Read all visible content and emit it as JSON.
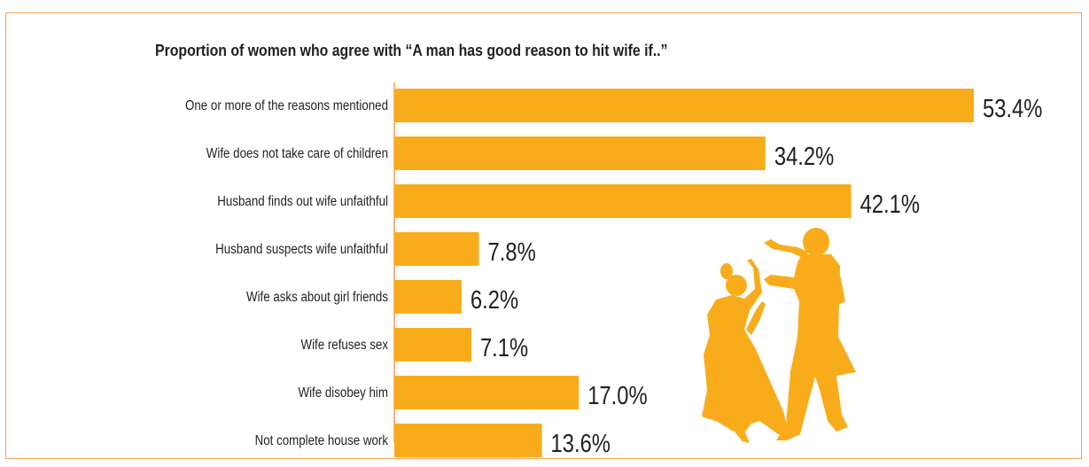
{
  "chart_data": {
    "type": "bar",
    "orientation": "horizontal",
    "title": "Proportion of women who agree with “A man has good reason to hit wife if..”",
    "categories": [
      "One or more of the reasons mentioned",
      "Wife does not take care of children",
      "Husband finds out wife unfaithful",
      "Husband suspects wife unfaithful",
      "Wife asks about girl friends",
      "Wife refuses sex",
      "Wife disobey him",
      "Not complete house work"
    ],
    "values": [
      53.4,
      34.2,
      42.1,
      7.8,
      6.2,
      7.1,
      17.0,
      13.6
    ],
    "value_labels": [
      "53.4%",
      "34.2%",
      "42.1%",
      "7.8%",
      "6.2%",
      "7.1%",
      "17.0%",
      "13.6%"
    ],
    "unit": "%",
    "grid": false,
    "legend": "none",
    "colors": {
      "bar": "#f9ac1b",
      "axis": "#f0a05a",
      "frame": "#f0a05a",
      "text": "#231f20",
      "silhouette": "#f9ac1b"
    },
    "illustration": "silhouette-couple"
  }
}
